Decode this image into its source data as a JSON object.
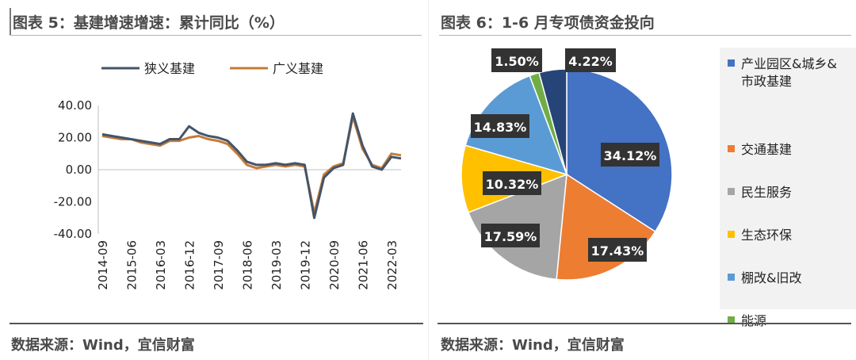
{
  "left": {
    "title": "图表 5：基建增速增速：累计同比（%）",
    "source": "数据来源：Wind，宜信财富"
  },
  "right": {
    "title": "图表 6：1-6 月专项债资金投向",
    "source": "数据来源：Wind，宜信财富"
  },
  "chart_data": [
    {
      "type": "line",
      "title": "图表 5：基建增速增速：累计同比（%）",
      "xlabel": "",
      "ylabel": "",
      "ylim": [
        -40,
        40
      ],
      "yticks": [
        "40.00",
        "20.00",
        "0.00",
        "-20.00",
        "-40.00"
      ],
      "xticks": [
        "2014-09",
        "2015-06",
        "2016-03",
        "2016-12",
        "2017-09",
        "2018-06",
        "2019-03",
        "2019-12",
        "2020-09",
        "2021-06",
        "2022-03"
      ],
      "x": [
        "2014-09",
        "2014-12",
        "2015-03",
        "2015-06",
        "2015-09",
        "2015-12",
        "2016-03",
        "2016-06",
        "2016-09",
        "2016-12",
        "2017-03",
        "2017-06",
        "2017-09",
        "2017-12",
        "2018-03",
        "2018-06",
        "2018-09",
        "2018-12",
        "2019-03",
        "2019-06",
        "2019-09",
        "2019-12",
        "2020-03",
        "2020-06",
        "2020-09",
        "2020-12",
        "2021-03",
        "2021-06",
        "2021-09",
        "2021-12",
        "2022-03",
        "2022-06"
      ],
      "grid": false,
      "legend_position": "top",
      "series": [
        {
          "name": "狭义基建",
          "color": "#44546a",
          "values": [
            22,
            21,
            20,
            19,
            18,
            17,
            16,
            19,
            19,
            27,
            23,
            21,
            20,
            18,
            12,
            5,
            3,
            3,
            4,
            3,
            4,
            3,
            -30,
            -5,
            1,
            3,
            35,
            15,
            2,
            0,
            8,
            7
          ]
        },
        {
          "name": "广义基建",
          "color": "#c47c37",
          "values": [
            21,
            20,
            19,
            19,
            17,
            16,
            15,
            18,
            18,
            20,
            21,
            19,
            18,
            16,
            10,
            3,
            1,
            2,
            3,
            2,
            3,
            2,
            -27,
            -3,
            2,
            4,
            33,
            13,
            3,
            1,
            10,
            9
          ]
        }
      ]
    },
    {
      "type": "pie",
      "title": "图表 6：1-6 月专项债资金投向",
      "legend_position": "right",
      "categories": [
        "产业园区&城乡&市政基建",
        "交通基建",
        "民生服务",
        "生态环保",
        "棚改&旧改",
        "能源",
        ""
      ],
      "values": [
        34.12,
        17.43,
        17.59,
        10.32,
        14.83,
        1.5,
        4.22
      ],
      "labels": [
        "34.12%",
        "17.43%",
        "17.59%",
        "10.32%",
        "14.83%",
        "1.50%",
        "4.22%"
      ],
      "colors": [
        "#4472c4",
        "#ed7d31",
        "#a5a5a5",
        "#ffc000",
        "#5b9bd5",
        "#70ad47",
        "#264478"
      ]
    }
  ]
}
